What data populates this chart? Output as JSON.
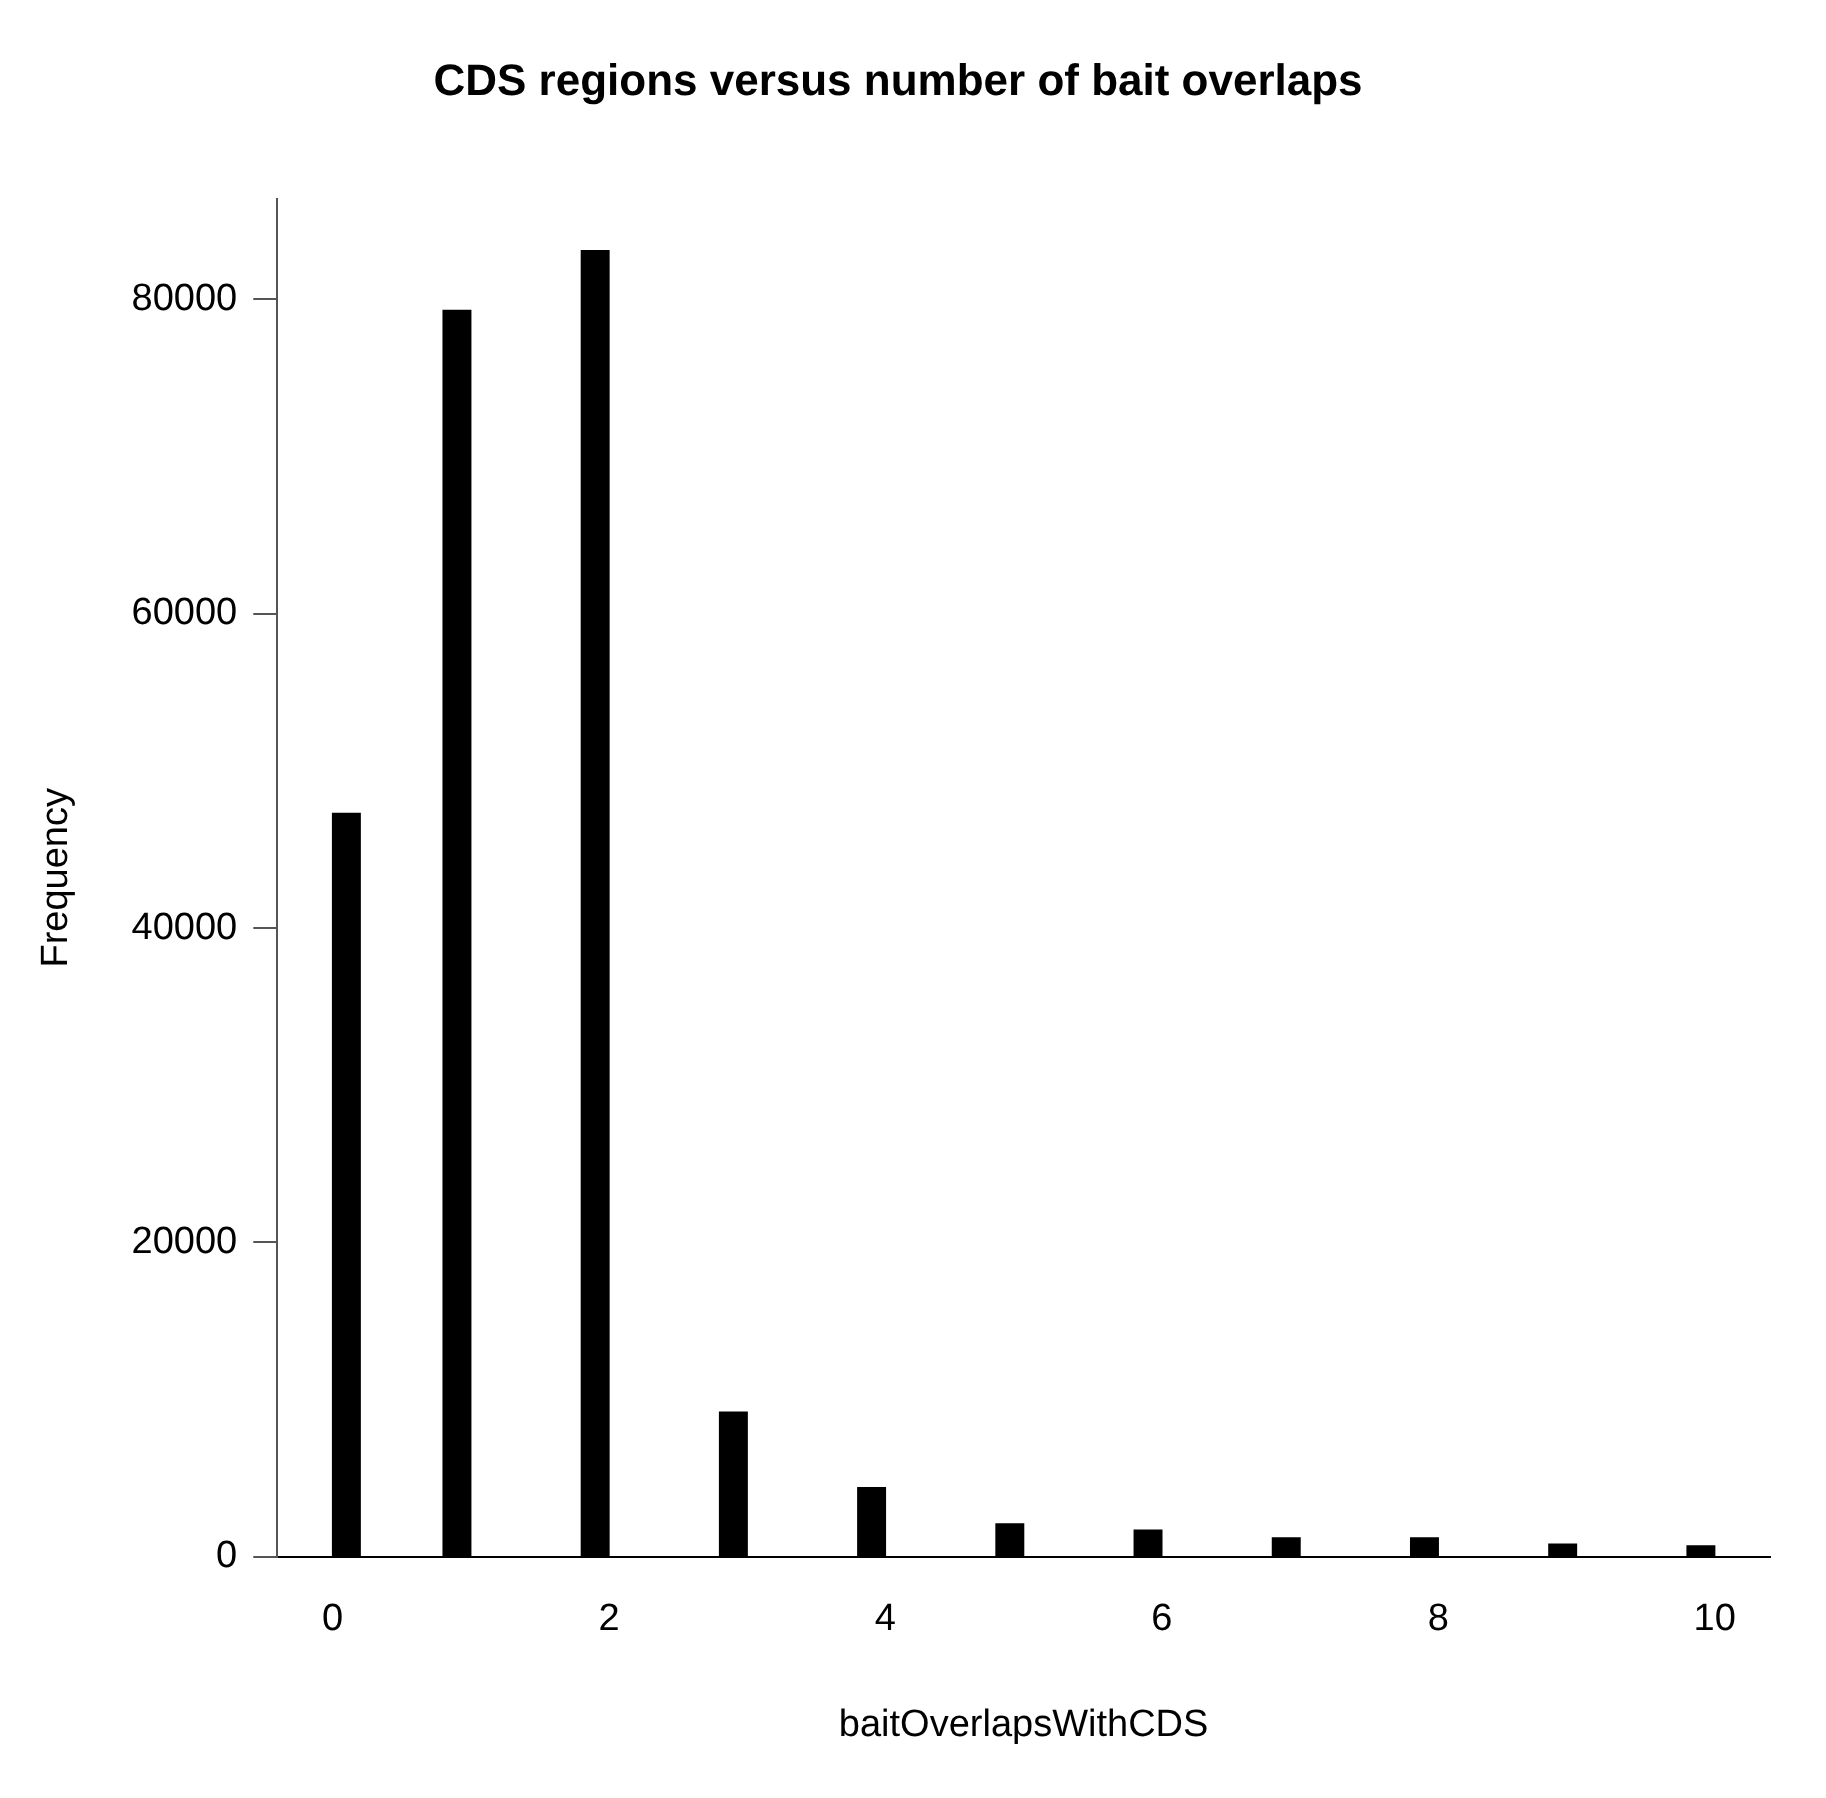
{
  "chart_data": {
    "type": "histogram",
    "title": "CDS regions versus number of bait overlaps",
    "xlabel": "baitOverlapsWithCDS",
    "ylabel": "Frequency",
    "bins": [
      0,
      0.2,
      0.4,
      0.6,
      0.8,
      1,
      1.2,
      1.4,
      1.6,
      1.8,
      2,
      2.2,
      2.4,
      2.6,
      2.8,
      3,
      3.2,
      3.4,
      3.6,
      3.8,
      4,
      4.2,
      4.4,
      4.6,
      4.8,
      5,
      5.2,
      5.4,
      5.6,
      5.8,
      6,
      6.2,
      6.4,
      6.6,
      6.8,
      7,
      7.2,
      7.4,
      7.6,
      7.8,
      8,
      8.2,
      8.4,
      8.6,
      8.8,
      9,
      9.2,
      9.4,
      9.6,
      9.8,
      10
    ],
    "values": [
      47300,
      0,
      0,
      0,
      79300,
      0,
      0,
      0,
      0,
      83100,
      0,
      0,
      0,
      0,
      9200,
      0,
      0,
      0,
      0,
      4400,
      0,
      0,
      0,
      0,
      2100,
      0,
      0,
      0,
      0,
      1700,
      0,
      0,
      0,
      0,
      1200,
      0,
      0,
      0,
      0,
      1200,
      0,
      0,
      0,
      0,
      800,
      0,
      0,
      0,
      0,
      700
    ],
    "color": "#000000",
    "xlim": [
      -0.4,
      10.4
    ],
    "xticks": [
      0,
      2,
      4,
      6,
      8,
      10
    ],
    "ylim": [
      0,
      86400
    ],
    "yticks": [
      0,
      20000,
      40000,
      60000,
      80000
    ]
  }
}
